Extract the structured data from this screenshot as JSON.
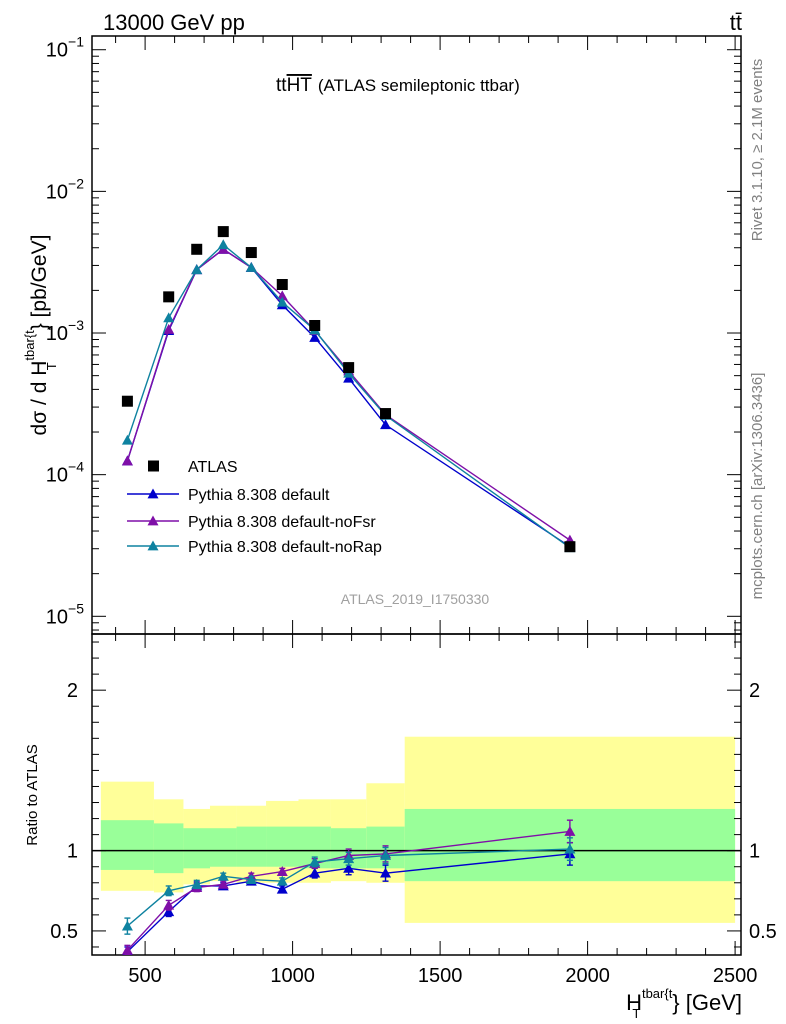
{
  "header": {
    "energy_label": "13000 GeV pp",
    "process_label": "tt̄"
  },
  "side_labels": {
    "rivet": "Rivet 3.1.10, ≥ 2.1M events",
    "mcplots": "mcplots.cern.ch [arXiv:1306.3436]"
  },
  "watermark": "ATLAS_2019_I1750330",
  "title": {
    "main": "tt",
    "overline": "HT",
    "suffix": "(ATLAS semileptonic ttbar)"
  },
  "axes": {
    "ylabel_main": "dσ / d H",
    "ylabel_sup": "tbar{t",
    "ylabel_sub": "T",
    "ylabel_tail": "} [pb/GeV]",
    "ylabel_ratio": "Ratio to ATLAS",
    "xlabel_main": "H",
    "xlabel_sup": "tbar{t",
    "xlabel_sub": "T",
    "xlabel_tail": "} [GeV]"
  },
  "legend": [
    {
      "label": "ATLAS",
      "color": "#000000",
      "marker": "square"
    },
    {
      "label": "Pythia 8.308 default",
      "color": "#0000cc",
      "marker": "triangle"
    },
    {
      "label": "Pythia 8.308 default-noFsr",
      "color": "#7f0fa8",
      "marker": "triangle"
    },
    {
      "label": "Pythia 8.308 default-noRap",
      "color": "#0e82a0",
      "marker": "triangle"
    }
  ],
  "chart_data": {
    "type": "scatter",
    "xlim": [
      320,
      2520
    ],
    "ylim_main": [
      7.5e-06,
      0.125
    ],
    "yscale_main": "log",
    "ylim_ratio": [
      0.35,
      2.35
    ],
    "xticks": [
      500,
      1000,
      1500,
      2000,
      2500
    ],
    "ratio_ticks": [
      0.5,
      1,
      2
    ],
    "ratio_tick_labels": [
      "0.5",
      "1",
      "2"
    ],
    "main_tick_labels": [
      {
        "value": 1e-05,
        "mantissa": "10",
        "exp": "−5"
      },
      {
        "value": 0.0001,
        "mantissa": "10",
        "exp": "−4"
      },
      {
        "value": 0.001,
        "mantissa": "10",
        "exp": "−3"
      },
      {
        "value": 0.01,
        "mantissa": "10",
        "exp": "−2"
      },
      {
        "value": 0.1,
        "mantissa": "10",
        "exp": "−1"
      }
    ],
    "bins": [
      [
        350,
        530
      ],
      [
        530,
        630
      ],
      [
        630,
        720
      ],
      [
        720,
        810
      ],
      [
        810,
        910
      ],
      [
        910,
        1020
      ],
      [
        1020,
        1130
      ],
      [
        1130,
        1250
      ],
      [
        1250,
        1380
      ],
      [
        1380,
        2500
      ]
    ],
    "x": [
      440,
      580,
      675,
      765,
      860,
      965,
      1075,
      1190,
      1315,
      1940
    ],
    "data": [
      0.00033,
      0.0018,
      0.0039,
      0.0052,
      0.0037,
      0.0022,
      0.00113,
      0.00057,
      0.00027,
      3.1e-05
    ],
    "series": [
      {
        "name": "Pythia 8.308 default",
        "values": [
          0.000125,
          0.00104,
          0.0028,
          0.0039,
          0.0029,
          0.00158,
          0.00093,
          0.00048,
          0.000225,
          3.1e-05
        ],
        "ratio": [
          0.37,
          0.62,
          0.78,
          0.78,
          0.81,
          0.76,
          0.86,
          0.89,
          0.86,
          0.98
        ],
        "ratio_err": [
          0.03,
          0.03,
          0.025,
          0.02,
          0.02,
          0.02,
          0.03,
          0.04,
          0.05,
          0.07
        ]
      },
      {
        "name": "Pythia 8.308 default-noFsr",
        "values": [
          0.000125,
          0.00106,
          0.0028,
          0.0039,
          0.0029,
          0.00183,
          0.00104,
          0.00054,
          0.000265,
          3.45e-05
        ],
        "ratio": [
          0.38,
          0.66,
          0.77,
          0.79,
          0.84,
          0.87,
          0.92,
          0.97,
          0.98,
          1.12
        ],
        "ratio_err": [
          0.03,
          0.03,
          0.025,
          0.02,
          0.02,
          0.02,
          0.03,
          0.04,
          0.05,
          0.07
        ]
      },
      {
        "name": "Pythia 8.308 default-noRap",
        "values": [
          0.000175,
          0.00128,
          0.0028,
          0.0042,
          0.0029,
          0.00165,
          0.00105,
          0.00052,
          0.000262,
          3.05e-05
        ],
        "ratio": [
          0.53,
          0.75,
          0.79,
          0.84,
          0.82,
          0.81,
          0.93,
          0.95,
          0.97,
          1.01
        ],
        "ratio_err": [
          0.05,
          0.03,
          0.025,
          0.02,
          0.02,
          0.02,
          0.03,
          0.04,
          0.05,
          0.07
        ]
      }
    ],
    "bands": {
      "inner": [
        [
          0.88,
          1.19
        ],
        [
          0.86,
          1.17
        ],
        [
          0.89,
          1.14
        ],
        [
          0.9,
          1.14
        ],
        [
          0.9,
          1.15
        ],
        [
          0.9,
          1.15
        ],
        [
          0.89,
          1.15
        ],
        [
          0.89,
          1.14
        ],
        [
          0.89,
          1.15
        ],
        [
          0.81,
          1.26
        ]
      ],
      "outer": [
        [
          0.75,
          1.43
        ],
        [
          0.74,
          1.32
        ],
        [
          0.79,
          1.26
        ],
        [
          0.81,
          1.28
        ],
        [
          0.8,
          1.28
        ],
        [
          0.8,
          1.31
        ],
        [
          0.8,
          1.32
        ],
        [
          0.81,
          1.32
        ],
        [
          0.8,
          1.42
        ],
        [
          0.55,
          1.71
        ]
      ],
      "inner_color": "#99ff99",
      "outer_color": "#ffff99"
    }
  }
}
